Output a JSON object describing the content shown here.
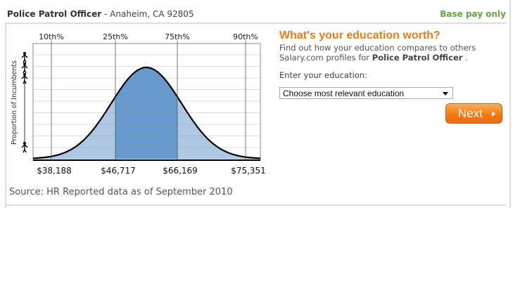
{
  "header": {
    "title": "Police Patrol Officer",
    "location": "- Anaheim, CA 92805",
    "pay_type": "Base pay only"
  },
  "chart": {
    "y_axis_label": "Proportion of Incumbents",
    "percentile_labels": [
      "10th%",
      "25th%",
      "75th%",
      "90th%"
    ],
    "salary_labels": [
      "$38,188",
      "$46,717",
      "$66,169",
      "$75,351"
    ]
  },
  "source": "Source: HR Reported data as of September  2010",
  "education": {
    "heading": "What's your education worth?",
    "line1": "Find out how your education compares to others",
    "line2": "Salary.com profiles for",
    "job": "Police Patrol Officer",
    "period": ".",
    "prompt": "Enter your education:",
    "select": "Choose most relevant education",
    "button": "Next"
  }
}
